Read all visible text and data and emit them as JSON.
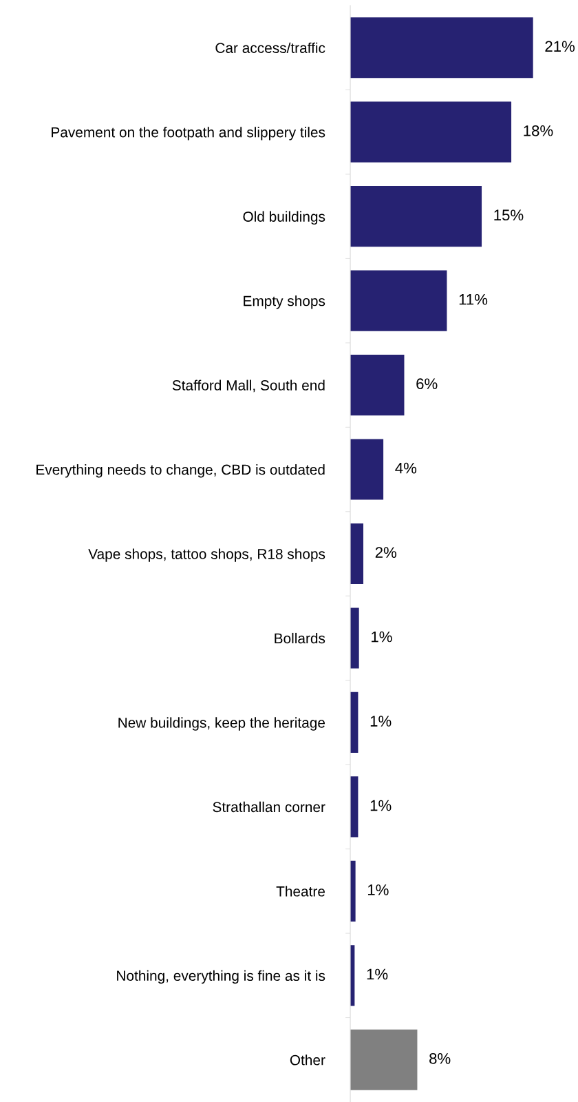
{
  "chart_data": {
    "type": "bar",
    "orientation": "horizontal",
    "categories": [
      "Car access/traffic",
      "Pavement on the footpath and slippery tiles",
      "Old buildings",
      "Empty shops",
      "Stafford Mall, South end",
      "Everything needs to change, CBD is outdated",
      "Vape shops, tattoo shops, R18 shops",
      "Bollards",
      "New buildings, keep the heritage",
      "Strathallan corner",
      "Theatre",
      "Nothing, everything is fine as it is",
      "Other"
    ],
    "values": [
      21,
      18.5,
      15.1,
      11.1,
      6.2,
      3.8,
      1.5,
      1.0,
      0.9,
      0.9,
      0.6,
      0.5,
      7.7
    ],
    "value_labels": [
      "21%",
      "18%",
      "15%",
      "11%",
      "6%",
      "4%",
      "2%",
      "1%",
      "1%",
      "1%",
      "1%",
      "1%",
      "8%"
    ],
    "colors": [
      "#262272",
      "#262272",
      "#262272",
      "#262272",
      "#262272",
      "#262272",
      "#262272",
      "#262272",
      "#262272",
      "#262272",
      "#262272",
      "#262272",
      "#808080"
    ],
    "grid": false,
    "legend": false
  }
}
